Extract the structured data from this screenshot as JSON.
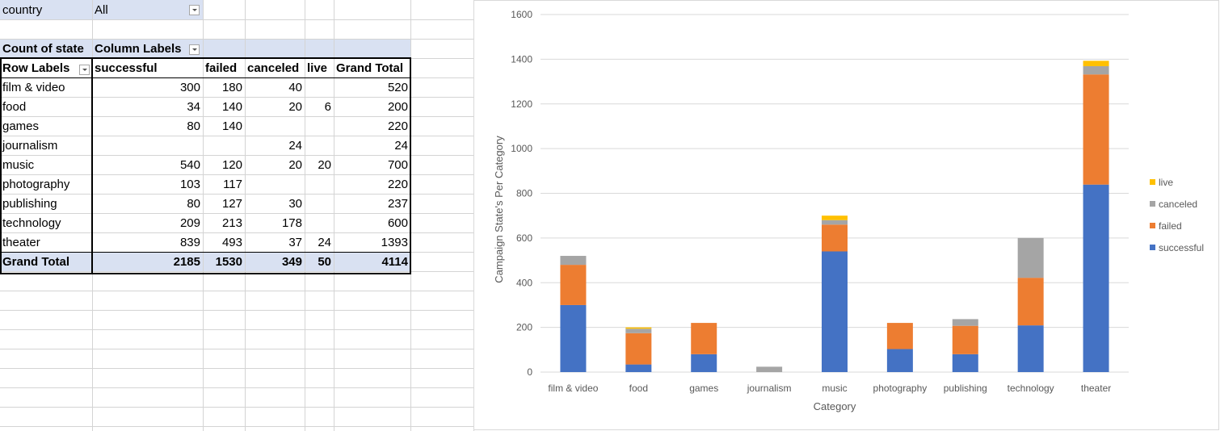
{
  "filter": {
    "label": "country",
    "value": "All"
  },
  "pivot": {
    "measure_label": "Count of state",
    "column_labels": "Column Labels",
    "row_labels": "Row Labels",
    "headers": [
      "successful",
      "failed",
      "canceled",
      "live",
      "Grand Total"
    ],
    "rows": [
      {
        "label": "film & video",
        "values": [
          "300",
          "180",
          "40",
          "",
          "520"
        ]
      },
      {
        "label": "food",
        "values": [
          "34",
          "140",
          "20",
          "6",
          "200"
        ]
      },
      {
        "label": "games",
        "values": [
          "80",
          "140",
          "",
          "",
          "220"
        ]
      },
      {
        "label": "journalism",
        "values": [
          "",
          "",
          "24",
          "",
          "24"
        ]
      },
      {
        "label": "music",
        "values": [
          "540",
          "120",
          "20",
          "20",
          "700"
        ]
      },
      {
        "label": "photography",
        "values": [
          "103",
          "117",
          "",
          "",
          "220"
        ]
      },
      {
        "label": "publishing",
        "values": [
          "80",
          "127",
          "30",
          "",
          "237"
        ]
      },
      {
        "label": "technology",
        "values": [
          "209",
          "213",
          "178",
          "",
          "600"
        ]
      },
      {
        "label": "theater",
        "values": [
          "839",
          "493",
          "37",
          "24",
          "1393"
        ]
      }
    ],
    "grand_total": {
      "label": "Grand Total",
      "values": [
        "2185",
        "1530",
        "349",
        "50",
        "4114"
      ]
    }
  },
  "chart_data": {
    "type": "bar",
    "stacked": true,
    "categories": [
      "film & video",
      "food",
      "games",
      "journalism",
      "music",
      "photography",
      "publishing",
      "technology",
      "theater"
    ],
    "series": [
      {
        "name": "successful",
        "color": "#4472c4",
        "values": [
          300,
          34,
          80,
          0,
          540,
          103,
          80,
          209,
          839
        ]
      },
      {
        "name": "failed",
        "color": "#ed7d31",
        "values": [
          180,
          140,
          140,
          0,
          120,
          117,
          127,
          213,
          493
        ]
      },
      {
        "name": "canceled",
        "color": "#a5a5a5",
        "values": [
          40,
          20,
          0,
          24,
          20,
          0,
          30,
          178,
          37
        ]
      },
      {
        "name": "live",
        "color": "#ffc000",
        "values": [
          0,
          6,
          0,
          0,
          20,
          0,
          0,
          0,
          24
        ]
      }
    ],
    "xlabel": "Category",
    "ylabel": "Campaign State's Per Category",
    "ylim": [
      0,
      1600
    ],
    "yticks": [
      "0",
      "200",
      "400",
      "600",
      "800",
      "1000",
      "1200",
      "1400",
      "1600"
    ],
    "grid": true,
    "legend": "right"
  }
}
